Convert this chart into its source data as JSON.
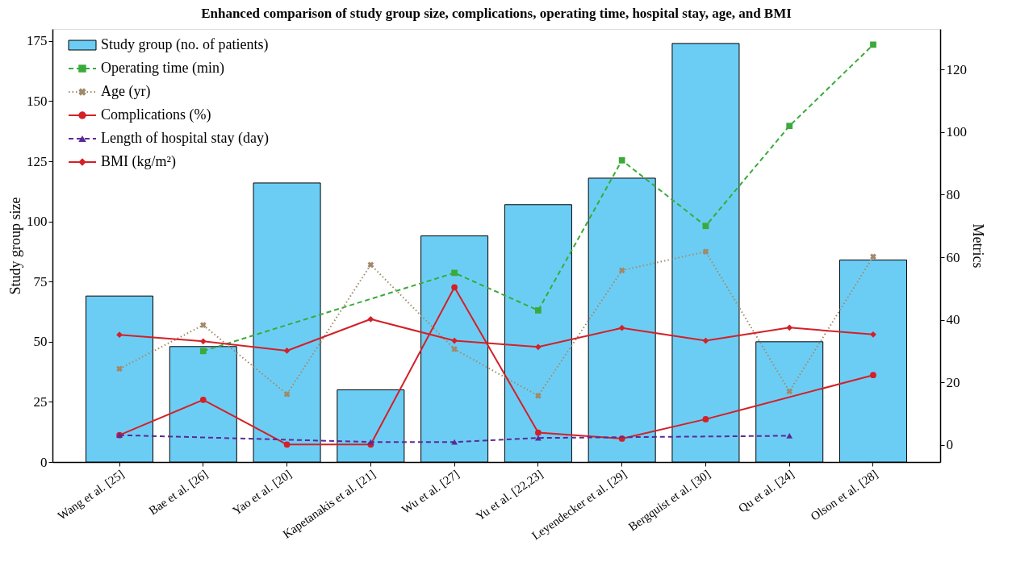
{
  "chart_data": {
    "type": "bar",
    "title": "Enhanced comparison of study group size, complications, operating time, hospital stay, age, and BMI",
    "categories": [
      "Wang et al. [25]",
      "Bae et al. [26]",
      "Yao et al. [20]",
      "Kapetanakis et al. [21]",
      "Wu et al. [27]",
      "Yu et al. [22,23]",
      "Leyendecker et al. [29]",
      "Bergquist et al. [30]",
      "Qu et al. [24]",
      "Olson et al. [28]"
    ],
    "ylabel": "Study group size",
    "y2label": "Metrics",
    "ylim": [
      0,
      180
    ],
    "yticks": [
      0,
      25,
      50,
      75,
      100,
      125,
      150,
      175
    ],
    "y2lim": [
      -5.5,
      133
    ],
    "y2ticks": [
      0,
      20,
      40,
      60,
      80,
      100,
      120
    ],
    "grid": false,
    "legend": "top left",
    "series": [
      {
        "name": "Study group (no. of patients)",
        "color": "#6ccdf4",
        "values": [
          69,
          48,
          116,
          30,
          94,
          107,
          118,
          174,
          50,
          84
        ]
      },
      {
        "name": "Operating time (min)",
        "type": "line",
        "axis": "y2",
        "color": "#3aaa3a",
        "marker": "square",
        "line_style": "dashed",
        "values": [
          null,
          30,
          null,
          null,
          55,
          43,
          91,
          70,
          102,
          128
        ]
      },
      {
        "name": "Age (yr)",
        "type": "line",
        "axis": "y2",
        "color": "#a08a6a",
        "marker": "cross",
        "line_style": "dotted",
        "values": [
          24.3,
          38.3,
          16.2,
          57.6,
          30.6,
          15.7,
          55.8,
          61.8,
          17.1,
          60.2
        ]
      },
      {
        "name": "Complications (%)",
        "type": "line",
        "axis": "y2",
        "color": "#d42027",
        "marker": "circle",
        "line_style": "solid",
        "values": [
          3.1,
          14.4,
          0.1,
          0.1,
          50.4,
          3.9,
          2.0,
          8.2,
          null,
          22.3
        ]
      },
      {
        "name": "Length of hospital stay (day)",
        "type": "line",
        "axis": "y2",
        "color": "#5b2a96",
        "marker": "triangle",
        "line_style": "dashed",
        "values": [
          3.1,
          null,
          null,
          0.9,
          0.9,
          2.2,
          null,
          null,
          2.9,
          null
        ]
      },
      {
        "name": "BMI (kg/m²)",
        "type": "line",
        "axis": "y2",
        "color": "#d42027",
        "marker": "diamond",
        "line_style": "solid",
        "values": [
          35.2,
          33.1,
          30.1,
          40.2,
          33.3,
          31.3,
          37.4,
          33.3,
          37.5,
          35.3
        ]
      }
    ]
  }
}
